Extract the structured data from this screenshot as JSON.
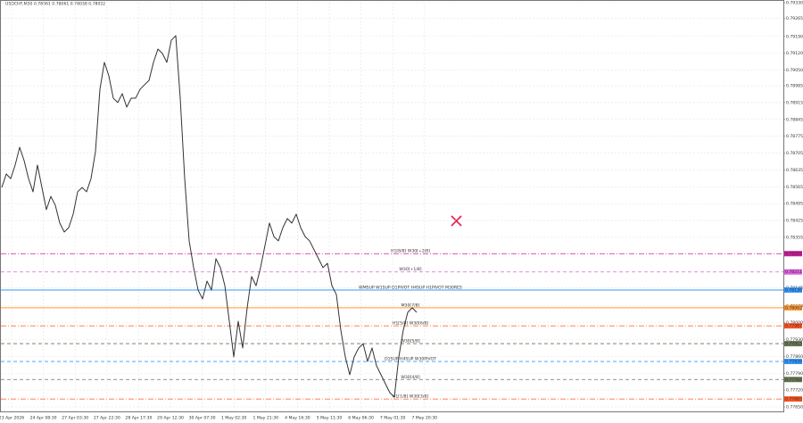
{
  "chart_data": {
    "type": "line",
    "title": "USDCHF,M30  0.78061 0.78061 0.78038 0.78052",
    "x_tick_labels": [
      "23 Apr 2026",
      "24 Apr 08:30",
      "27 Apr 03:30",
      "27 Apr 22:30",
      "28 Apr 17:30",
      "29 Apr 12:30",
      "30 Apr 07:30",
      "1 May 02:30",
      "1 May 21:30",
      "4 May 16:30",
      "5 May 11:30",
      "6 May 06:30",
      "7 May 01:30",
      "7 May 20:30"
    ],
    "ylim": [
      0.7765,
      0.7933
    ],
    "yticks": [
      {
        "value": 0.7933,
        "label": "0.79330"
      },
      0.79265,
      {
        "value": 0.7919,
        "label": "0.79190"
      },
      {
        "value": 0.7912,
        "label": "0.79120"
      },
      {
        "value": 0.7905,
        "label": "0.79050"
      },
      0.78985,
      0.78915,
      0.78845,
      0.78775,
      0.78705,
      0.78635,
      0.78565,
      0.78495,
      0.78425,
      0.78355,
      0.78145,
      {
        "value": 0.7807,
        "label": "0.78070"
      },
      {
        "value": 0.78,
        "label": "0.78000"
      },
      {
        "value": 0.7793,
        "label": "0.77930"
      },
      {
        "value": 0.7786,
        "label": "0.77860"
      },
      {
        "value": 0.7779,
        "label": "0.77790"
      },
      {
        "value": 0.7772,
        "label": "0.77720"
      },
      {
        "value": 0.7765,
        "label": "0.77650"
      }
    ],
    "grid": true,
    "series": [
      {
        "color": "#333333",
        "values": [
          0.78562,
          0.78618,
          0.78599,
          0.78655,
          0.78729,
          0.78674,
          0.78599,
          0.78544,
          0.78655,
          0.78562,
          0.7847,
          0.78525,
          0.78488,
          0.78414,
          0.78377,
          0.78395,
          0.78451,
          0.78544,
          0.78562,
          0.78544,
          0.78599,
          0.78711,
          0.7897,
          0.79082,
          0.79026,
          0.78933,
          0.78915,
          0.78952,
          0.78896,
          0.78933,
          0.78933,
          0.7897,
          0.78989,
          0.79007,
          0.79082,
          0.79137,
          0.79119,
          0.79082,
          0.79174,
          0.79193,
          0.78933,
          0.78599,
          0.7834,
          0.78229,
          0.78136,
          0.78099,
          0.78173,
          0.78136,
          0.78266,
          0.78229,
          0.78154,
          0.78006,
          0.77858,
          0.78006,
          0.77895,
          0.78062,
          0.78192,
          0.78154,
          0.78229,
          0.78321,
          0.78414,
          0.78358,
          0.7834,
          0.78395,
          0.78433,
          0.78414,
          0.78451,
          0.78395,
          0.78358,
          0.7834,
          0.78303,
          0.78266,
          0.78229,
          0.78247,
          0.78154,
          0.78117,
          0.77969,
          0.77858,
          0.77784,
          0.77858,
          0.77895,
          0.77913,
          0.77839,
          0.77895,
          0.77821,
          0.77784,
          0.77746,
          0.77709,
          0.77691,
          0.77858,
          0.77969,
          0.78043,
          0.78062,
          0.78043
        ]
      }
    ],
    "levels": [
      {
        "label": "H1[8/8] W30[+2/8]",
        "value": 0.78287,
        "color": "#cc1a9a",
        "style": "dashdot"
      },
      {
        "label": "W30[+1/8]",
        "value": 0.78211,
        "color": "#e060e0",
        "style": "dash"
      },
      {
        "label": "WMSUP W1SUP D1PIVOT H4SUP H1PIVOT M30RES",
        "value": 0.78136,
        "color": "#3399ff",
        "style": "solid"
      },
      {
        "label": "M30[7/8]",
        "value": 0.78062,
        "color": "#ff9933",
        "style": "solid"
      },
      {
        "label": "H1[5/8] W30[6/8]",
        "value": 0.77987,
        "color": "#ff5522",
        "style": "dashdot"
      },
      {
        "label": "W30[5/8]",
        "value": 0.77913,
        "color": "#667755",
        "style": "dash"
      },
      {
        "label": "D1SUP H4SUP W30PIVOT",
        "value": 0.77839,
        "color": "#3399ff",
        "style": "dash"
      },
      {
        "label": "W30[4/8]",
        "value": 0.77764,
        "color": "#667755",
        "style": "dash"
      },
      {
        "label": "H1[1/8] W30[3/8]",
        "value": 0.77683,
        "color": "#ff5522",
        "style": "dashdot"
      }
    ]
  }
}
